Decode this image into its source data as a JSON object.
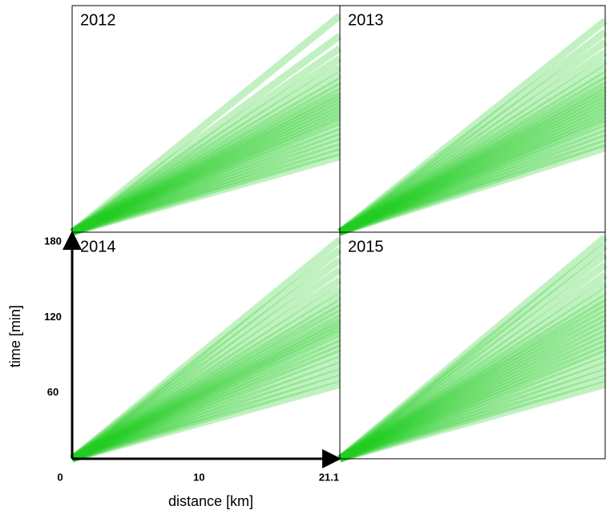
{
  "chart_data": [
    {
      "type": "line",
      "title": "2012",
      "color": "#22cc22",
      "xlim": [
        0,
        21.1
      ],
      "ylim": [
        0,
        180
      ],
      "values": [
        60,
        64,
        68,
        72,
        76,
        80,
        84,
        88,
        91,
        94,
        97,
        100,
        103,
        106,
        109,
        112,
        116,
        120,
        125,
        131,
        138,
        146,
        156,
        172
      ]
    },
    {
      "type": "line",
      "title": "2013",
      "color": "#22cc22",
      "xlim": [
        0,
        21.1
      ],
      "ylim": [
        0,
        180
      ],
      "values": [
        67,
        71,
        75,
        79,
        83,
        87,
        90,
        93,
        96,
        99,
        102,
        105,
        108,
        111,
        114,
        117,
        121,
        125,
        130,
        136,
        143,
        151,
        159,
        168
      ]
    },
    {
      "type": "line",
      "title": "2014",
      "color": "#22cc22",
      "xlim": [
        0,
        21.1
      ],
      "ylim": [
        0,
        180
      ],
      "xticks": [
        0,
        10,
        21.1
      ],
      "yticks": [
        60,
        120,
        180
      ],
      "xlabel": "distance [km]",
      "ylabel": "time [min]",
      "values": [
        59,
        64,
        69,
        74,
        79,
        84,
        88,
        92,
        96,
        100,
        103,
        106,
        109,
        112,
        116,
        120,
        124,
        129,
        135,
        142,
        150,
        158,
        166,
        174
      ]
    },
    {
      "type": "line",
      "title": "2015",
      "color": "#22cc22",
      "xlim": [
        0,
        21.1
      ],
      "ylim": [
        0,
        180
      ],
      "values": [
        59,
        64,
        69,
        74,
        79,
        84,
        88,
        92,
        96,
        100,
        104,
        108,
        112,
        116,
        120,
        124,
        128,
        133,
        139,
        146,
        154,
        162,
        169,
        176
      ]
    }
  ]
}
